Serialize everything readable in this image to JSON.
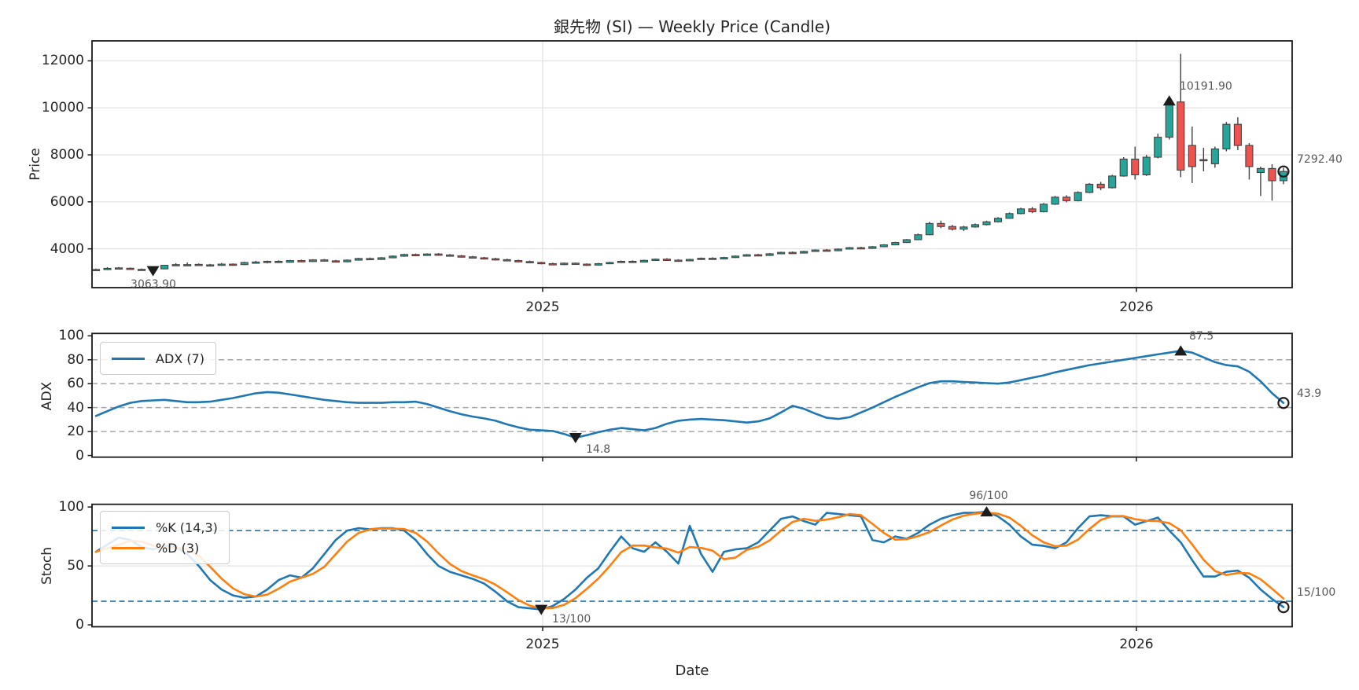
{
  "title": "銀先物 (SI) — Weekly Price (Candle)",
  "chart_data": {
    "type": "candlestick+line",
    "title": "銀先物 (SI) — Weekly Price (Candle)",
    "xlabel": "Date",
    "x_ticks": {
      "labels": [
        "2025",
        "2026"
      ],
      "weeks": [
        39.12,
        91.12
      ]
    },
    "colors": {
      "up": "#26a69a",
      "down": "#ef5350",
      "wick": "#424242",
      "line_blue": "#1f77b4",
      "line_orange": "#ff7f0e",
      "grid": "#e3e3e3",
      "dashed_grid": "#a6a6a6",
      "spine": "#1a1a1a",
      "marker": "#1c1c1c",
      "annotation_text": "#595959"
    },
    "panels": {
      "price": {
        "ylabel": "Price",
        "ylim": [
          2350,
          12850
        ],
        "yticks": [
          4000,
          6000,
          8000,
          10000,
          12000
        ],
        "annotations": [
          {
            "name": "low",
            "marker": "tri-down",
            "week": 5,
            "value": 3063.9,
            "label": "3063.90"
          },
          {
            "name": "high",
            "marker": "tri-up",
            "week": 94,
            "value": 10300,
            "label": "10191.90"
          },
          {
            "name": "last",
            "marker": "circle",
            "week": 104,
            "value": 7292.4,
            "label": "7292.40"
          }
        ],
        "candles": [
          [
            3085,
            3160,
            3070,
            3125
          ],
          [
            3125,
            3220,
            3095,
            3170
          ],
          [
            3190,
            3225,
            3140,
            3155
          ],
          [
            3175,
            3205,
            3105,
            3130
          ],
          [
            3130,
            3165,
            3075,
            3095
          ],
          [
            3095,
            3175,
            3063.9,
            3150
          ],
          [
            3150,
            3320,
            3130,
            3300
          ],
          [
            3330,
            3390,
            3280,
            3310
          ],
          [
            3310,
            3420,
            3300,
            3330
          ],
          [
            3340,
            3380,
            3270,
            3300
          ],
          [
            3300,
            3360,
            3250,
            3320
          ],
          [
            3320,
            3400,
            3280,
            3350
          ],
          [
            3350,
            3380,
            3310,
            3330
          ],
          [
            3330,
            3450,
            3310,
            3420
          ],
          [
            3420,
            3490,
            3390,
            3440
          ],
          [
            3440,
            3500,
            3380,
            3470
          ],
          [
            3470,
            3510,
            3400,
            3430
          ],
          [
            3430,
            3530,
            3410,
            3500
          ],
          [
            3500,
            3540,
            3430,
            3460
          ],
          [
            3460,
            3560,
            3440,
            3530
          ],
          [
            3530,
            3570,
            3460,
            3490
          ],
          [
            3490,
            3530,
            3420,
            3450
          ],
          [
            3450,
            3550,
            3430,
            3520
          ],
          [
            3520,
            3620,
            3500,
            3590
          ],
          [
            3590,
            3630,
            3520,
            3550
          ],
          [
            3550,
            3650,
            3530,
            3620
          ],
          [
            3620,
            3720,
            3600,
            3690
          ],
          [
            3690,
            3790,
            3660,
            3760
          ],
          [
            3760,
            3800,
            3690,
            3720
          ],
          [
            3720,
            3810,
            3700,
            3780
          ],
          [
            3780,
            3820,
            3710,
            3740
          ],
          [
            3740,
            3780,
            3670,
            3700
          ],
          [
            3700,
            3740,
            3630,
            3660
          ],
          [
            3660,
            3700,
            3590,
            3620
          ],
          [
            3620,
            3660,
            3550,
            3580
          ],
          [
            3580,
            3620,
            3510,
            3540
          ],
          [
            3540,
            3580,
            3470,
            3500
          ],
          [
            3500,
            3540,
            3430,
            3460
          ],
          [
            3460,
            3500,
            3390,
            3420
          ],
          [
            3420,
            3450,
            3340,
            3370
          ],
          [
            3370,
            3410,
            3300,
            3330
          ],
          [
            3330,
            3420,
            3310,
            3390
          ],
          [
            3390,
            3420,
            3320,
            3350
          ],
          [
            3350,
            3380,
            3280,
            3310
          ],
          [
            3310,
            3400,
            3290,
            3370
          ],
          [
            3370,
            3450,
            3350,
            3420
          ],
          [
            3420,
            3500,
            3400,
            3470
          ],
          [
            3470,
            3510,
            3420,
            3440
          ],
          [
            3440,
            3540,
            3420,
            3510
          ],
          [
            3510,
            3590,
            3490,
            3560
          ],
          [
            3560,
            3600,
            3500,
            3520
          ],
          [
            3520,
            3560,
            3460,
            3490
          ],
          [
            3490,
            3580,
            3470,
            3550
          ],
          [
            3550,
            3630,
            3530,
            3600
          ],
          [
            3600,
            3640,
            3550,
            3570
          ],
          [
            3570,
            3660,
            3550,
            3630
          ],
          [
            3630,
            3720,
            3610,
            3690
          ],
          [
            3690,
            3780,
            3670,
            3750
          ],
          [
            3750,
            3790,
            3700,
            3720
          ],
          [
            3720,
            3820,
            3700,
            3790
          ],
          [
            3790,
            3880,
            3770,
            3850
          ],
          [
            3850,
            3890,
            3800,
            3820
          ],
          [
            3820,
            3920,
            3800,
            3890
          ],
          [
            3890,
            3980,
            3870,
            3950
          ],
          [
            3950,
            3990,
            3900,
            3920
          ],
          [
            3920,
            4020,
            3900,
            3990
          ],
          [
            3990,
            4080,
            3970,
            4050
          ],
          [
            4050,
            4090,
            4000,
            4020
          ],
          [
            4020,
            4120,
            4000,
            4090
          ],
          [
            4090,
            4200,
            4070,
            4170
          ],
          [
            4170,
            4300,
            4150,
            4270
          ],
          [
            4270,
            4420,
            4250,
            4390
          ],
          [
            4390,
            4650,
            4370,
            4600
          ],
          [
            4600,
            5150,
            4580,
            5080
          ],
          [
            5080,
            5200,
            4880,
            4950
          ],
          [
            4950,
            5020,
            4780,
            4840
          ],
          [
            4840,
            4980,
            4760,
            4930
          ],
          [
            4930,
            5080,
            4900,
            5030
          ],
          [
            5030,
            5200,
            5000,
            5150
          ],
          [
            5150,
            5350,
            5120,
            5300
          ],
          [
            5300,
            5550,
            5280,
            5500
          ],
          [
            5500,
            5750,
            5470,
            5700
          ],
          [
            5700,
            5780,
            5520,
            5580
          ],
          [
            5580,
            5950,
            5550,
            5900
          ],
          [
            5900,
            6250,
            5870,
            6200
          ],
          [
            6200,
            6280,
            5980,
            6050
          ],
          [
            6050,
            6450,
            6020,
            6400
          ],
          [
            6400,
            6800,
            6370,
            6750
          ],
          [
            6750,
            6850,
            6500,
            6600
          ],
          [
            6600,
            7150,
            6570,
            7100
          ],
          [
            7100,
            7900,
            7070,
            7820
          ],
          [
            7820,
            8350,
            6950,
            7150
          ],
          [
            7150,
            8000,
            7100,
            7900
          ],
          [
            7900,
            8900,
            7850,
            8750
          ],
          [
            8750,
            10250,
            8650,
            10191.9
          ],
          [
            10250,
            12300,
            7050,
            7350
          ],
          [
            8400,
            9200,
            6800,
            7500
          ],
          [
            7800,
            8300,
            7300,
            7780
          ],
          [
            7620,
            8350,
            7450,
            8250
          ],
          [
            8250,
            9400,
            8150,
            9300
          ],
          [
            9300,
            9600,
            8200,
            8400
          ],
          [
            8400,
            8500,
            6950,
            7500
          ],
          [
            7250,
            7500,
            6250,
            7420
          ],
          [
            7420,
            7600,
            6050,
            6900
          ],
          [
            6900,
            7450,
            6750,
            7292.4
          ]
        ]
      },
      "adx": {
        "ylabel": "ADX",
        "legend": "ADX (7)",
        "ylim": [
          0,
          100
        ],
        "yticks": [
          0,
          20,
          40,
          60,
          80,
          100
        ],
        "dashed_levels": [
          20,
          40,
          60,
          80
        ],
        "values": [
          33,
          37,
          41,
          44,
          45.5,
          46,
          46.5,
          45.5,
          44.5,
          44.5,
          45,
          46.5,
          48,
          50,
          52,
          53,
          52.5,
          51,
          49.5,
          48,
          46.5,
          45.5,
          44.5,
          44,
          44,
          44,
          44.5,
          44.5,
          45,
          43,
          40,
          37,
          34.5,
          32.5,
          31,
          29,
          26,
          23.5,
          21.5,
          21,
          20.5,
          18,
          14.8,
          17,
          19.5,
          21.5,
          23,
          22,
          21,
          23,
          26.5,
          29,
          30,
          30.5,
          30,
          29.5,
          28.5,
          27.5,
          28.5,
          31,
          36,
          41.5,
          39,
          35,
          31.5,
          30.5,
          32,
          36,
          40,
          44.5,
          49,
          53,
          57,
          60.5,
          62,
          62,
          61.5,
          61,
          60.5,
          60,
          61,
          63,
          65,
          67,
          69.5,
          71.5,
          73.5,
          75.5,
          77,
          78.5,
          80,
          81.5,
          83,
          84.5,
          86,
          87.5,
          86,
          82,
          78,
          75.5,
          74.5,
          70,
          62,
          52,
          43.9
        ],
        "annotations": [
          {
            "name": "min",
            "marker": "tri-down",
            "week": 42,
            "value": 14.8,
            "label": "14.8"
          },
          {
            "name": "peak",
            "marker": "tri-up",
            "week": 95,
            "value": 87.5,
            "label": "87.5"
          },
          {
            "name": "last",
            "marker": "circle",
            "week": 104,
            "value": 43.9,
            "label": "43.9"
          }
        ]
      },
      "stoch": {
        "ylabel": "Stoch",
        "legend_k": "%K (14,3)",
        "legend_d": "%D (3)",
        "ylim": [
          0,
          100
        ],
        "yticks": [
          0,
          50,
          100
        ],
        "grid_levels": [
          50
        ],
        "band_levels": [
          20,
          80
        ],
        "k": [
          62,
          68,
          74,
          72,
          66,
          64,
          67,
          66,
          60,
          50,
          38,
          30,
          25,
          23,
          24,
          30,
          38,
          42,
          40,
          48,
          60,
          72,
          80,
          82,
          81,
          82,
          82,
          80,
          72,
          60,
          50,
          45,
          42,
          39,
          35,
          28,
          20,
          15,
          14,
          13,
          16,
          22,
          30,
          40,
          48,
          62,
          75,
          65,
          62,
          70,
          62,
          52,
          84,
          60,
          45,
          62,
          64,
          65,
          70,
          80,
          90,
          92,
          88,
          85,
          95,
          94,
          93,
          92,
          72,
          70,
          75,
          73,
          78,
          85,
          90,
          93,
          95,
          95,
          96,
          92,
          85,
          75,
          68,
          67,
          65,
          70,
          82,
          92,
          93,
          92,
          92,
          85,
          88,
          91,
          80,
          70,
          55,
          41,
          41,
          45,
          46,
          40,
          30,
          22,
          15
        ],
        "d": [
          62,
          65,
          68,
          71.3,
          70.7,
          67.3,
          65.7,
          65.7,
          64.3,
          58.7,
          49.3,
          39.3,
          31,
          26,
          24,
          25.7,
          30.7,
          36.7,
          40,
          43.3,
          49.3,
          60,
          70.7,
          78,
          81,
          81.7,
          81.7,
          81.3,
          78,
          70.7,
          60.7,
          51.7,
          45.7,
          42,
          38.7,
          34,
          27.7,
          21,
          16.3,
          14,
          14.3,
          17,
          22.7,
          30.7,
          39.3,
          50,
          61.7,
          67.3,
          67.3,
          65.7,
          64.7,
          61.3,
          66,
          65.3,
          63,
          55.7,
          57,
          63.7,
          66.3,
          71.7,
          80,
          87.3,
          90,
          88.3,
          89.3,
          91.3,
          94,
          93,
          85.7,
          78,
          72.3,
          72.7,
          75.3,
          78.7,
          84.3,
          89.3,
          92.7,
          94.3,
          95.3,
          94.3,
          91,
          84,
          76,
          70,
          66.7,
          67.3,
          72.3,
          81.3,
          89,
          92.3,
          92.3,
          89.7,
          88.3,
          88,
          86.3,
          80.3,
          68.3,
          55.3,
          45.7,
          42.3,
          44,
          43.7,
          38.7,
          30.7,
          22.3
        ],
        "annotations": [
          {
            "name": "min",
            "marker": "tri-down",
            "week": 39,
            "value": 13,
            "label": "13/100"
          },
          {
            "name": "peak",
            "marker": "tri-up",
            "week": 78,
            "value": 96,
            "label": "96/100"
          },
          {
            "name": "last",
            "marker": "circle",
            "week": 104,
            "value": 15,
            "label": "15/100"
          }
        ]
      }
    }
  }
}
